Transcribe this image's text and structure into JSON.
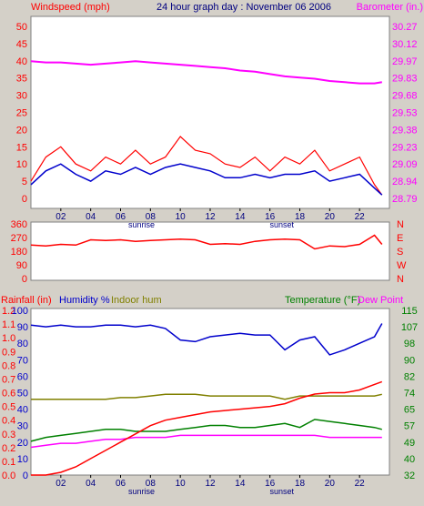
{
  "header": {
    "left": "Windspeed (mph)",
    "center": "24 hour graph day : November 06 2006",
    "right": "Barometer (in.)"
  },
  "colors": {
    "background": "#d4d0c8",
    "plot_bg": "#ffffff",
    "wind": "#ff0000",
    "avg_wind": "#0000cc",
    "barometer": "#ff00ff",
    "direction": "#ff0000",
    "humidity": "#0000cc",
    "indoor_hum": "#808000",
    "temperature": "#008000",
    "dew_point": "#ff00ff",
    "rainfall": "#ff0000",
    "title_blue": "#000080"
  },
  "x_ticks": [
    "02",
    "04",
    "06",
    "08",
    "10",
    "12",
    "14",
    "16",
    "18",
    "20",
    "22"
  ],
  "sun_labels": {
    "sunrise": "sunrise",
    "sunset": "sunset"
  },
  "chart_data": [
    {
      "type": "line",
      "title": "24 hour graph day : November 06 2006",
      "ylabel": "Windspeed (mph)",
      "ylabel_right": "Barometer (in.)",
      "x": [
        0,
        1,
        2,
        3,
        4,
        5,
        6,
        7,
        8,
        9,
        10,
        11,
        12,
        13,
        14,
        15,
        16,
        17,
        18,
        19,
        20,
        21,
        22,
        23,
        23.5
      ],
      "ylim": [
        0,
        50
      ],
      "yticks": [
        "0",
        "5",
        "10",
        "15",
        "20",
        "25",
        "30",
        "35",
        "40",
        "45",
        "50"
      ],
      "ylim_right": [
        28.79,
        30.27
      ],
      "yticks_right": [
        "28.79",
        "28.94",
        "29.09",
        "29.23",
        "29.38",
        "29.53",
        "29.68",
        "29.83",
        "29.97",
        "30.12",
        "30.27"
      ],
      "series": [
        {
          "name": "Windspeed (mph)",
          "axis": "left",
          "values": [
            5,
            12,
            15,
            10,
            8,
            12,
            10,
            14,
            10,
            12,
            18,
            14,
            13,
            10,
            9,
            12,
            8,
            12,
            10,
            14,
            8,
            10,
            12,
            4,
            1
          ]
        },
        {
          "name": "",
          "axis": "left",
          "values": [
            4,
            8,
            10,
            7,
            5,
            8,
            7,
            9,
            7,
            9,
            10,
            9,
            8,
            6,
            6,
            7,
            6,
            7,
            7,
            8,
            5,
            6,
            7,
            3,
            1
          ]
        },
        {
          "name": "Barometer (in.)",
          "axis": "right",
          "values": [
            29.97,
            29.96,
            29.96,
            29.95,
            29.94,
            29.95,
            29.96,
            29.97,
            29.96,
            29.95,
            29.94,
            29.93,
            29.92,
            29.91,
            29.89,
            29.88,
            29.86,
            29.84,
            29.83,
            29.82,
            29.8,
            29.79,
            29.78,
            29.78,
            29.79
          ]
        }
      ]
    },
    {
      "type": "line",
      "ylim": [
        0,
        360
      ],
      "yticks": [
        "0",
        "90",
        "180",
        "270",
        "360"
      ],
      "direction_labels": [
        "N",
        "W",
        "S",
        "E",
        "N"
      ],
      "x": [
        0,
        1,
        2,
        3,
        4,
        5,
        6,
        7,
        8,
        9,
        10,
        11,
        12,
        13,
        14,
        15,
        16,
        17,
        18,
        19,
        20,
        21,
        22,
        23,
        23.5
      ],
      "series": [
        {
          "name": "Wind direction",
          "values": [
            220,
            215,
            225,
            220,
            255,
            250,
            255,
            245,
            250,
            255,
            260,
            255,
            225,
            230,
            225,
            245,
            255,
            260,
            255,
            195,
            215,
            210,
            225,
            285,
            225
          ]
        }
      ]
    },
    {
      "type": "line",
      "x": [
        0,
        1,
        2,
        3,
        4,
        5,
        6,
        7,
        8,
        9,
        10,
        11,
        12,
        13,
        14,
        15,
        16,
        17,
        18,
        19,
        20,
        21,
        22,
        23,
        23.5
      ],
      "legend": [
        "Rainfall (in)",
        "Humidity %",
        "Indoor hum",
        "Temperature (°F)",
        "Dew Point"
      ],
      "y_rain": {
        "ylim": [
          0,
          1.2
        ],
        "yticks": [
          "0.0",
          "0.1",
          "0.2",
          "0.3",
          "0.4",
          "0.5",
          "0.6",
          "0.7",
          "0.8",
          "0.9",
          "1.0",
          "1.1",
          "1.2"
        ]
      },
      "y_humidity": {
        "ylim": [
          0,
          100
        ],
        "yticks": [
          "0",
          "10",
          "20",
          "30",
          "40",
          "50",
          "60",
          "70",
          "80",
          "90",
          "100"
        ]
      },
      "y_temp": {
        "ylim": [
          32,
          115
        ],
        "yticks": [
          "32",
          "40",
          "49",
          "57",
          "65",
          "74",
          "82",
          "90",
          "98",
          "107",
          "115"
        ]
      },
      "series": [
        {
          "name": "Rainfall (in)",
          "axis": "rain",
          "values": [
            0,
            0,
            0.02,
            0.06,
            0.12,
            0.18,
            0.24,
            0.3,
            0.36,
            0.4,
            0.42,
            0.44,
            0.46,
            0.47,
            0.48,
            0.49,
            0.5,
            0.52,
            0.56,
            0.59,
            0.6,
            0.6,
            0.62,
            0.66,
            0.68
          ]
        },
        {
          "name": "Humidity %",
          "axis": "humidity",
          "values": [
            91,
            90,
            91,
            90,
            90,
            91,
            91,
            90,
            91,
            89,
            82,
            81,
            84,
            85,
            86,
            85,
            85,
            76,
            82,
            84,
            73,
            76,
            80,
            84,
            92
          ]
        },
        {
          "name": "Indoor hum",
          "axis": "humidity",
          "values": [
            46,
            46,
            46,
            46,
            46,
            46,
            47,
            47,
            48,
            49,
            49,
            49,
            48,
            48,
            48,
            48,
            48,
            46,
            48,
            48,
            48,
            48,
            48,
            48,
            49
          ]
        },
        {
          "name": "Temperature (°F)",
          "axis": "temp",
          "values": [
            49,
            51,
            52,
            53,
            54,
            55,
            55,
            54,
            54,
            54,
            55,
            56,
            57,
            57,
            56,
            56,
            57,
            58,
            56,
            60,
            59,
            58,
            57,
            56,
            55
          ]
        },
        {
          "name": "Dew Point",
          "axis": "temp",
          "values": [
            46,
            47,
            48,
            48,
            49,
            50,
            50,
            51,
            51,
            51,
            52,
            52,
            52,
            52,
            52,
            52,
            52,
            52,
            52,
            52,
            51,
            51,
            51,
            51,
            51
          ]
        }
      ]
    }
  ]
}
